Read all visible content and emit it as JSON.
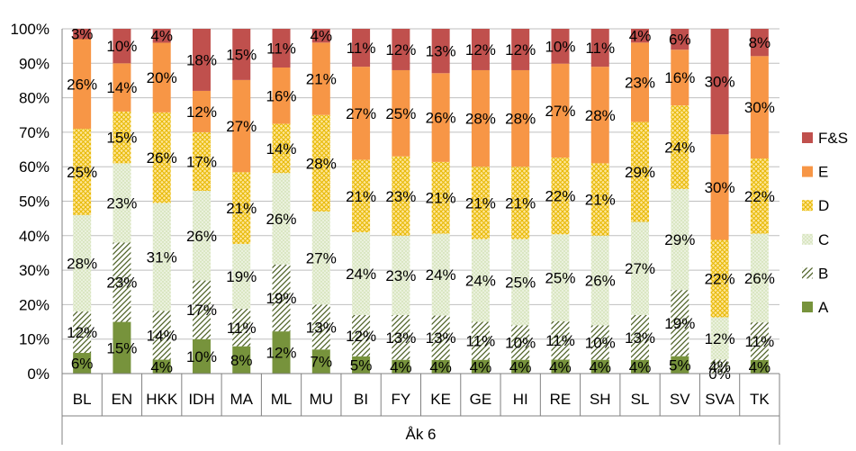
{
  "chart_data": {
    "type": "bar",
    "stacked": true,
    "percent": true,
    "categories": [
      "BL",
      "EN",
      "HKK",
      "IDH",
      "MA",
      "ML",
      "MU",
      "BI",
      "FY",
      "KE",
      "GE",
      "HI",
      "RE",
      "SH",
      "SL",
      "SV",
      "SVA",
      "TK"
    ],
    "group_label": "Åk 6",
    "y_ticks": [
      "0%",
      "10%",
      "20%",
      "30%",
      "40%",
      "50%",
      "60%",
      "70%",
      "80%",
      "90%",
      "100%"
    ],
    "ylim": [
      0,
      100
    ],
    "legend_position": "right",
    "series": [
      {
        "name": "A",
        "color": "#77933C",
        "pattern": "solid",
        "values": [
          6,
          15,
          4,
          10,
          8,
          12,
          7,
          5,
          4,
          4,
          4,
          4,
          4,
          4,
          4,
          5,
          0,
          4
        ],
        "labels": [
          "6%",
          "15%",
          "4%",
          "10%",
          "8%",
          "12%",
          "7%",
          "5%",
          "4%",
          "4%",
          "4%",
          "4%",
          "4%",
          "4%",
          "4%",
          "5%",
          "0%",
          "4%"
        ]
      },
      {
        "name": "B",
        "color": "#D7E4BD",
        "pattern": "diagonal",
        "values": [
          12,
          23,
          14,
          17,
          11,
          19,
          13,
          12,
          13,
          13,
          11,
          10,
          11,
          10,
          13,
          19,
          4,
          11
        ],
        "labels": [
          "12%",
          "23%",
          "14%",
          "17%",
          "11%",
          "19%",
          "13%",
          "12%",
          "13%",
          "13%",
          "11%",
          "10%",
          "11%",
          "10%",
          "13%",
          "19%",
          "4%",
          "11%"
        ]
      },
      {
        "name": "C",
        "color": "#D7E4BD",
        "pattern": "dots",
        "values": [
          28,
          23,
          31,
          26,
          19,
          26,
          27,
          24,
          23,
          24,
          24,
          25,
          25,
          26,
          27,
          29,
          12,
          26
        ],
        "labels": [
          "28%",
          "23%",
          "31%",
          "26%",
          "19%",
          "26%",
          "27%",
          "24%",
          "23%",
          "24%",
          "24%",
          "25%",
          "25%",
          "26%",
          "27%",
          "29%",
          "12%",
          "26%"
        ]
      },
      {
        "name": "D",
        "color": "#F7D94A",
        "pattern": "cross",
        "values": [
          25,
          15,
          26,
          17,
          21,
          14,
          28,
          21,
          23,
          21,
          21,
          21,
          22,
          21,
          29,
          24,
          22,
          22
        ],
        "labels": [
          "25%",
          "15%",
          "26%",
          "17%",
          "21%",
          "14%",
          "28%",
          "21%",
          "23%",
          "21%",
          "21%",
          "21%",
          "22%",
          "21%",
          "29%",
          "24%",
          "22%",
          "22%"
        ]
      },
      {
        "name": "E",
        "color": "#F79646",
        "pattern": "solid",
        "values": [
          26,
          14,
          20,
          12,
          27,
          16,
          21,
          27,
          25,
          26,
          28,
          28,
          27,
          28,
          23,
          16,
          30,
          30
        ],
        "labels": [
          "26%",
          "14%",
          "20%",
          "12%",
          "27%",
          "16%",
          "21%",
          "27%",
          "25%",
          "26%",
          "28%",
          "28%",
          "27%",
          "28%",
          "23%",
          "16%",
          "30%",
          "30%"
        ]
      },
      {
        "name": "F&S",
        "color": "#C0504D",
        "pattern": "solid",
        "values": [
          3,
          10,
          4,
          18,
          15,
          11,
          4,
          11,
          12,
          13,
          12,
          12,
          10,
          11,
          4,
          6,
          30,
          8
        ],
        "labels": [
          "3%",
          "10%",
          "4%",
          "18%",
          "15%",
          "11%",
          "4%",
          "11%",
          "12%",
          "13%",
          "12%",
          "12%",
          "10%",
          "11%",
          "4%",
          "6%",
          "30%",
          "8%"
        ]
      }
    ]
  }
}
